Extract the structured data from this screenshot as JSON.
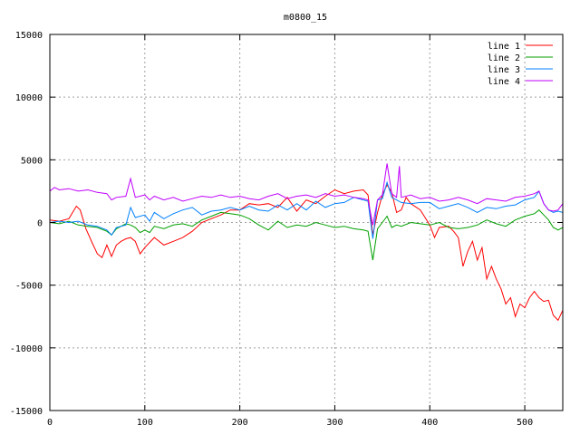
{
  "chart_data": {
    "type": "line",
    "title": "m0800_15",
    "xlabel": "",
    "ylabel": "",
    "xlim": [
      0,
      540
    ],
    "ylim": [
      -15000,
      15000
    ],
    "x_ticks": [
      0,
      100,
      200,
      300,
      400,
      500
    ],
    "y_ticks": [
      -15000,
      -10000,
      -5000,
      0,
      5000,
      10000,
      15000
    ],
    "grid": true,
    "legend_position": "top-right",
    "series": [
      {
        "name": "line 1",
        "color": "#ff0000",
        "points": [
          [
            0,
            200
          ],
          [
            10,
            100
          ],
          [
            20,
            300
          ],
          [
            28,
            1300
          ],
          [
            32,
            1000
          ],
          [
            38,
            -500
          ],
          [
            45,
            -1700
          ],
          [
            50,
            -2500
          ],
          [
            55,
            -2800
          ],
          [
            60,
            -1800
          ],
          [
            65,
            -2700
          ],
          [
            70,
            -1800
          ],
          [
            75,
            -1500
          ],
          [
            80,
            -1300
          ],
          [
            85,
            -1200
          ],
          [
            90,
            -1500
          ],
          [
            95,
            -2500
          ],
          [
            100,
            -2000
          ],
          [
            110,
            -1200
          ],
          [
            120,
            -1800
          ],
          [
            130,
            -1500
          ],
          [
            140,
            -1200
          ],
          [
            150,
            -700
          ],
          [
            160,
            0
          ],
          [
            170,
            300
          ],
          [
            180,
            600
          ],
          [
            190,
            1000
          ],
          [
            200,
            1000
          ],
          [
            210,
            1500
          ],
          [
            220,
            1400
          ],
          [
            230,
            1500
          ],
          [
            240,
            1200
          ],
          [
            250,
            2000
          ],
          [
            260,
            900
          ],
          [
            270,
            1800
          ],
          [
            280,
            1500
          ],
          [
            290,
            2100
          ],
          [
            300,
            2600
          ],
          [
            310,
            2300
          ],
          [
            320,
            2500
          ],
          [
            330,
            2600
          ],
          [
            335,
            2200
          ],
          [
            340,
            -1000
          ],
          [
            345,
            800
          ],
          [
            350,
            2200
          ],
          [
            355,
            3000
          ],
          [
            360,
            2400
          ],
          [
            365,
            800
          ],
          [
            370,
            1000
          ],
          [
            375,
            2000
          ],
          [
            380,
            1500
          ],
          [
            390,
            1000
          ],
          [
            400,
            -200
          ],
          [
            405,
            -1200
          ],
          [
            410,
            -400
          ],
          [
            420,
            -300
          ],
          [
            425,
            -700
          ],
          [
            430,
            -1200
          ],
          [
            435,
            -3500
          ],
          [
            440,
            -2300
          ],
          [
            445,
            -1500
          ],
          [
            450,
            -3000
          ],
          [
            455,
            -2000
          ],
          [
            460,
            -4500
          ],
          [
            465,
            -3500
          ],
          [
            470,
            -4500
          ],
          [
            475,
            -5300
          ],
          [
            480,
            -6500
          ],
          [
            485,
            -6000
          ],
          [
            490,
            -7500
          ],
          [
            495,
            -6500
          ],
          [
            500,
            -6800
          ],
          [
            505,
            -6000
          ],
          [
            510,
            -5500
          ],
          [
            515,
            -6000
          ],
          [
            520,
            -6300
          ],
          [
            525,
            -6200
          ],
          [
            530,
            -7400
          ],
          [
            535,
            -7800
          ],
          [
            540,
            -7000
          ]
        ]
      },
      {
        "name": "line 2",
        "color": "#00a000",
        "points": [
          [
            0,
            0
          ],
          [
            10,
            -100
          ],
          [
            20,
            100
          ],
          [
            30,
            -200
          ],
          [
            40,
            -300
          ],
          [
            50,
            -400
          ],
          [
            60,
            -700
          ],
          [
            65,
            -1000
          ],
          [
            70,
            -500
          ],
          [
            75,
            -300
          ],
          [
            80,
            -100
          ],
          [
            85,
            -200
          ],
          [
            90,
            -400
          ],
          [
            95,
            -800
          ],
          [
            100,
            -600
          ],
          [
            105,
            -800
          ],
          [
            110,
            -300
          ],
          [
            120,
            -500
          ],
          [
            130,
            -200
          ],
          [
            140,
            -100
          ],
          [
            150,
            -300
          ],
          [
            160,
            200
          ],
          [
            170,
            500
          ],
          [
            180,
            800
          ],
          [
            190,
            700
          ],
          [
            200,
            600
          ],
          [
            210,
            300
          ],
          [
            220,
            -200
          ],
          [
            230,
            -600
          ],
          [
            240,
            100
          ],
          [
            250,
            -400
          ],
          [
            260,
            -200
          ],
          [
            270,
            -300
          ],
          [
            280,
            0
          ],
          [
            290,
            -200
          ],
          [
            300,
            -400
          ],
          [
            310,
            -300
          ],
          [
            320,
            -500
          ],
          [
            330,
            -600
          ],
          [
            335,
            -700
          ],
          [
            340,
            -3000
          ],
          [
            345,
            -500
          ],
          [
            350,
            0
          ],
          [
            355,
            500
          ],
          [
            360,
            -400
          ],
          [
            365,
            -200
          ],
          [
            370,
            -300
          ],
          [
            380,
            0
          ],
          [
            390,
            -100
          ],
          [
            400,
            -200
          ],
          [
            410,
            0
          ],
          [
            420,
            -400
          ],
          [
            430,
            -500
          ],
          [
            440,
            -400
          ],
          [
            450,
            -200
          ],
          [
            460,
            200
          ],
          [
            470,
            -100
          ],
          [
            480,
            -300
          ],
          [
            490,
            200
          ],
          [
            500,
            500
          ],
          [
            510,
            700
          ],
          [
            515,
            1000
          ],
          [
            520,
            600
          ],
          [
            525,
            200
          ],
          [
            530,
            -400
          ],
          [
            535,
            -600
          ],
          [
            540,
            -400
          ]
        ]
      },
      {
        "name": "line 3",
        "color": "#0080ff",
        "points": [
          [
            0,
            0
          ],
          [
            10,
            100
          ],
          [
            20,
            0
          ],
          [
            30,
            100
          ],
          [
            40,
            -200
          ],
          [
            50,
            -300
          ],
          [
            60,
            -600
          ],
          [
            65,
            -1000
          ],
          [
            70,
            -400
          ],
          [
            80,
            -200
          ],
          [
            85,
            1200
          ],
          [
            90,
            400
          ],
          [
            100,
            600
          ],
          [
            105,
            100
          ],
          [
            110,
            800
          ],
          [
            120,
            300
          ],
          [
            130,
            700
          ],
          [
            140,
            1000
          ],
          [
            150,
            1200
          ],
          [
            160,
            600
          ],
          [
            170,
            900
          ],
          [
            180,
            1000
          ],
          [
            190,
            1200
          ],
          [
            200,
            1000
          ],
          [
            210,
            1300
          ],
          [
            220,
            1000
          ],
          [
            230,
            900
          ],
          [
            240,
            1400
          ],
          [
            250,
            1000
          ],
          [
            260,
            1500
          ],
          [
            270,
            1000
          ],
          [
            280,
            1700
          ],
          [
            290,
            1200
          ],
          [
            300,
            1500
          ],
          [
            310,
            1600
          ],
          [
            320,
            2000
          ],
          [
            330,
            1800
          ],
          [
            335,
            1700
          ],
          [
            340,
            -1300
          ],
          [
            345,
            1800
          ],
          [
            350,
            1900
          ],
          [
            355,
            3200
          ],
          [
            360,
            2000
          ],
          [
            370,
            1600
          ],
          [
            380,
            1500
          ],
          [
            390,
            1600
          ],
          [
            400,
            1600
          ],
          [
            410,
            1100
          ],
          [
            420,
            1300
          ],
          [
            430,
            1500
          ],
          [
            440,
            1200
          ],
          [
            450,
            800
          ],
          [
            460,
            1200
          ],
          [
            470,
            1100
          ],
          [
            480,
            1300
          ],
          [
            490,
            1400
          ],
          [
            500,
            1800
          ],
          [
            510,
            2000
          ],
          [
            515,
            2500
          ],
          [
            520,
            1500
          ],
          [
            525,
            1000
          ],
          [
            530,
            800
          ],
          [
            535,
            900
          ],
          [
            540,
            800
          ]
        ]
      },
      {
        "name": "line 4",
        "color": "#c000ff",
        "points": [
          [
            0,
            2500
          ],
          [
            5,
            2800
          ],
          [
            10,
            2600
          ],
          [
            20,
            2700
          ],
          [
            30,
            2500
          ],
          [
            40,
            2600
          ],
          [
            50,
            2400
          ],
          [
            60,
            2300
          ],
          [
            65,
            1800
          ],
          [
            70,
            2000
          ],
          [
            80,
            2100
          ],
          [
            85,
            3500
          ],
          [
            90,
            2000
          ],
          [
            100,
            2200
          ],
          [
            105,
            1800
          ],
          [
            110,
            2100
          ],
          [
            120,
            1800
          ],
          [
            130,
            2000
          ],
          [
            140,
            1700
          ],
          [
            150,
            1900
          ],
          [
            160,
            2100
          ],
          [
            170,
            2000
          ],
          [
            180,
            2200
          ],
          [
            190,
            2000
          ],
          [
            200,
            2100
          ],
          [
            210,
            1900
          ],
          [
            220,
            1800
          ],
          [
            230,
            2100
          ],
          [
            240,
            2300
          ],
          [
            250,
            1900
          ],
          [
            260,
            2100
          ],
          [
            270,
            2200
          ],
          [
            280,
            2000
          ],
          [
            290,
            2300
          ],
          [
            300,
            2100
          ],
          [
            310,
            2200
          ],
          [
            320,
            2000
          ],
          [
            330,
            1900
          ],
          [
            335,
            1800
          ],
          [
            340,
            -200
          ],
          [
            345,
            1800
          ],
          [
            350,
            2200
          ],
          [
            355,
            4700
          ],
          [
            360,
            2300
          ],
          [
            365,
            2000
          ],
          [
            368,
            4500
          ],
          [
            370,
            2000
          ],
          [
            380,
            2200
          ],
          [
            390,
            1900
          ],
          [
            400,
            2000
          ],
          [
            410,
            1700
          ],
          [
            420,
            1800
          ],
          [
            430,
            2000
          ],
          [
            440,
            1800
          ],
          [
            450,
            1500
          ],
          [
            460,
            1900
          ],
          [
            470,
            1800
          ],
          [
            480,
            1700
          ],
          [
            490,
            2000
          ],
          [
            500,
            2100
          ],
          [
            510,
            2300
          ],
          [
            515,
            2500
          ],
          [
            520,
            1500
          ],
          [
            525,
            1000
          ],
          [
            530,
            900
          ],
          [
            535,
            1000
          ],
          [
            540,
            1500
          ]
        ]
      }
    ]
  }
}
